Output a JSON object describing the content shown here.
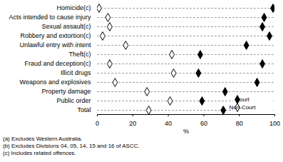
{
  "chart_data": {
    "type": "dot",
    "orientation": "horizontal",
    "categories": [
      "Homicide(c)",
      "Acts intended to cause injury",
      "Sexual assault(c)",
      "Robbery and extortion(c)",
      "Unlawful entry with intent",
      "Theft(c)",
      "Fraud and deception(c)",
      "Illicit drugs",
      "Weapons and explosives",
      "Property damage",
      "Public order",
      "Total"
    ],
    "series": [
      {
        "name": "Court",
        "color": "#000000",
        "marker": "diamond",
        "values": [
          99,
          94,
          93,
          97,
          84,
          58,
          93,
          57,
          90,
          72,
          59,
          71
        ]
      },
      {
        "name": "Non-Court",
        "color": "#000000",
        "marker": "diamond-open",
        "values": [
          1,
          6,
          7,
          3,
          16,
          42,
          7,
          43,
          10,
          28,
          41,
          29
        ]
      }
    ],
    "xlabel": "%",
    "xlim": [
      0,
      100
    ],
    "xticks": [
      0,
      20,
      40,
      60,
      80,
      100
    ],
    "grid": true,
    "legend": "bottom-right",
    "annotations": [
      "(a) Excludes Western Australia.",
      "(b) Excludes Divisions 04, 05, 14, 15 and 16 of ASCC.",
      "(c) Includes related offences."
    ]
  }
}
